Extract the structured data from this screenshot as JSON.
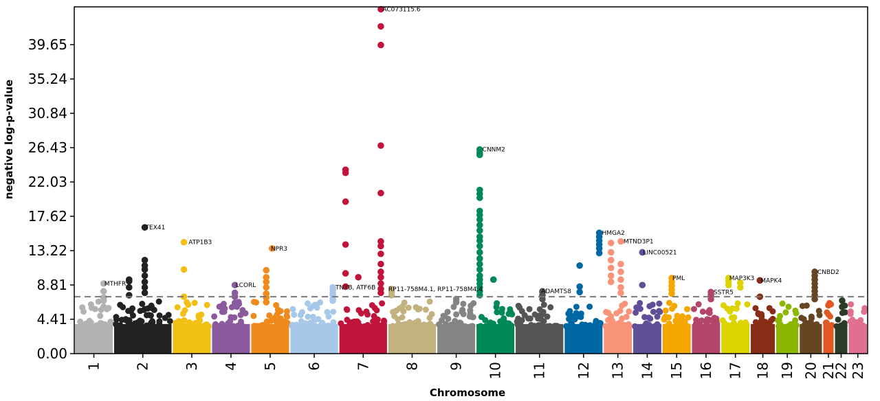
{
  "chart_data": {
    "type": "scatter",
    "subtype": "manhattan",
    "title": "",
    "xlabel": "Chromosome",
    "ylabel": "negative log-p-value",
    "ylim": [
      0,
      44.5
    ],
    "yticks": [
      "0.00",
      "4.41",
      "8.81",
      "13.22",
      "17.62",
      "22.03",
      "26.43",
      "30.84",
      "35.24",
      "39.65"
    ],
    "threshold": 7.3,
    "grid": false,
    "chromosomes": [
      {
        "label": "1",
        "color": "#b2b2b2",
        "span": [
          0.0,
          0.2
        ]
      },
      {
        "label": "2",
        "color": "#222222",
        "span": [
          0.2,
          0.5
        ]
      },
      {
        "label": "3",
        "color": "#f2c014",
        "span": [
          0.5,
          0.7
        ]
      },
      {
        "label": "4",
        "color": "#8a5a9c",
        "span": [
          0.7,
          0.9
        ]
      },
      {
        "label": "5",
        "color": "#f08a1c",
        "span": [
          0.9,
          1.1
        ]
      },
      {
        "label": "6",
        "color": "#a8c8ea",
        "span": [
          1.1,
          1.35
        ]
      },
      {
        "label": "7",
        "color": "#c0143c",
        "span": [
          1.35,
          1.6
        ]
      },
      {
        "label": "8",
        "color": "#c2b280",
        "span": [
          1.6,
          1.85
        ]
      },
      {
        "label": "9",
        "color": "#848482",
        "span": [
          1.85,
          2.05
        ]
      },
      {
        "label": "10",
        "color": "#008856",
        "span": [
          2.05,
          2.25
        ]
      },
      {
        "label": "11",
        "color": "#555555",
        "span": [
          2.25,
          2.5
        ]
      },
      {
        "label": "12",
        "color": "#0067a5",
        "span": [
          2.5,
          2.7
        ]
      },
      {
        "label": "13",
        "color": "#f99379",
        "span": [
          2.7,
          2.85
        ]
      },
      {
        "label": "14",
        "color": "#604e97",
        "span": [
          2.85,
          3.0
        ]
      },
      {
        "label": "15",
        "color": "#f6a600",
        "span": [
          3.0,
          3.15
        ]
      },
      {
        "label": "16",
        "color": "#b3446c",
        "span": [
          3.15,
          3.3
        ]
      },
      {
        "label": "17",
        "color": "#dcd300",
        "span": [
          3.3,
          3.45
        ]
      },
      {
        "label": "18",
        "color": "#882d17",
        "span": [
          3.45,
          3.58
        ]
      },
      {
        "label": "19",
        "color": "#8db600",
        "span": [
          3.58,
          3.7
        ]
      },
      {
        "label": "20",
        "color": "#654522",
        "span": [
          3.7,
          3.82
        ]
      },
      {
        "label": "21",
        "color": "#e25822",
        "span": [
          3.82,
          3.88
        ]
      },
      {
        "label": "22",
        "color": "#2b3d26",
        "span": [
          3.88,
          3.95
        ]
      },
      {
        "label": "23",
        "color": "#e07090",
        "span": [
          3.95,
          4.05
        ]
      }
    ],
    "annotations": [
      {
        "text": "MTHFR",
        "x": 0.15,
        "y": 9.0,
        "chrom": "1"
      },
      {
        "text": "TEX41",
        "x": 0.36,
        "y": 16.2,
        "chrom": "2"
      },
      {
        "text": "ATP1B3",
        "x": 0.58,
        "y": 14.3,
        "chrom": "3"
      },
      {
        "text": "LCORL",
        "x": 0.82,
        "y": 8.8,
        "chrom": "4"
      },
      {
        "text": "NPR3",
        "x": 1.0,
        "y": 13.5,
        "chrom": "5"
      },
      {
        "text": "TNXB, ATF6B",
        "x": 1.33,
        "y": 8.5,
        "chrom": "6"
      },
      {
        "text": "AC073115.6",
        "x": 1.57,
        "y": 44.2,
        "chrom": "7"
      },
      {
        "text": "RP11-758M4.1, RP11-758M4.4",
        "x": 1.6,
        "y": 8.3,
        "chrom": "8"
      },
      {
        "text": "CNNM2",
        "x": 2.08,
        "y": 26.2,
        "chrom": "10"
      },
      {
        "text": "ADAMTS8",
        "x": 2.38,
        "y": 8.0,
        "chrom": "11"
      },
      {
        "text": "HMGA2",
        "x": 2.69,
        "y": 15.5,
        "chrom": "12"
      },
      {
        "text": "MTND3P1",
        "x": 2.8,
        "y": 14.4,
        "chrom": "13"
      },
      {
        "text": "LINC00521",
        "x": 2.9,
        "y": 13.0,
        "chrom": "14"
      },
      {
        "text": "PML",
        "x": 3.05,
        "y": 9.7,
        "chrom": "15"
      },
      {
        "text": "SSTR5",
        "x": 3.26,
        "y": 7.9,
        "chrom": "16"
      },
      {
        "text": "MAP3K3",
        "x": 3.34,
        "y": 9.7,
        "chrom": "17"
      },
      {
        "text": "MAPK4",
        "x": 3.5,
        "y": 9.4,
        "chrom": "18"
      },
      {
        "text": "CNBD2",
        "x": 3.79,
        "y": 10.5,
        "chrom": "20"
      }
    ],
    "peaks": [
      {
        "chrom": "1",
        "x": 0.15,
        "values": [
          9.0,
          8.0,
          7.2,
          6.8,
          6.0
        ]
      },
      {
        "chrom": "2",
        "x": 0.36,
        "values": [
          16.2,
          12.0,
          11.3,
          10.8,
          10.0,
          9.2,
          8.5,
          7.8
        ]
      },
      {
        "chrom": "2",
        "x": 0.28,
        "values": [
          9.5,
          9.3,
          8.5,
          7.5
        ]
      },
      {
        "chrom": "3",
        "x": 0.56,
        "values": [
          14.3,
          10.8,
          7.3
        ]
      },
      {
        "chrom": "4",
        "x": 0.82,
        "values": [
          8.8,
          7.8,
          7.3,
          6.5
        ]
      },
      {
        "chrom": "5",
        "x": 1.01,
        "values": [
          13.5
        ]
      },
      {
        "chrom": "5",
        "x": 0.98,
        "values": [
          10.7,
          9.8,
          9.2,
          8.5,
          7.7,
          7.2,
          6.6
        ]
      },
      {
        "chrom": "6",
        "x": 1.32,
        "values": [
          8.5,
          8.2,
          7.8,
          7.5,
          7.0,
          6.8
        ]
      },
      {
        "chrom": "7",
        "x": 1.385,
        "values": [
          23.6,
          23.2,
          19.5,
          14.0,
          10.3,
          8.6
        ]
      },
      {
        "chrom": "7",
        "x": 1.565,
        "values": [
          44.2,
          42.0,
          39.6,
          26.7,
          20.6,
          14.4,
          13.8,
          12.8,
          11.5,
          10.5,
          9.8,
          9.0,
          8.3,
          7.8
        ]
      },
      {
        "chrom": "7",
        "x": 1.45,
        "values": [
          9.8
        ]
      },
      {
        "chrom": "8",
        "x": 1.62,
        "values": [
          8.3,
          8.1,
          7.9,
          7.5
        ]
      },
      {
        "chrom": "9",
        "x": 1.95,
        "values": [
          7.0,
          6.6
        ]
      },
      {
        "chrom": "10",
        "x": 2.07,
        "values": [
          26.2,
          25.8,
          25.5,
          21.0,
          20.5,
          20.0,
          18.3,
          17.8,
          17.2,
          16.5,
          15.8,
          15.0,
          14.5,
          13.8,
          13.0,
          12.2,
          11.5,
          10.8,
          10.0,
          9.5,
          9.0,
          8.5,
          8.0,
          7.5
        ]
      },
      {
        "chrom": "10",
        "x": 2.14,
        "values": [
          9.5
        ]
      },
      {
        "chrom": "11",
        "x": 2.39,
        "values": [
          8.0,
          7.9,
          7.5,
          7.0
        ]
      },
      {
        "chrom": "12",
        "x": 2.68,
        "values": [
          15.5,
          15.0,
          14.5,
          14.0,
          13.5,
          12.9
        ]
      },
      {
        "chrom": "12",
        "x": 2.58,
        "values": [
          11.3,
          8.6,
          7.9
        ]
      },
      {
        "chrom": "13",
        "x": 2.74,
        "values": [
          14.2,
          13.0,
          12.0,
          11.0,
          10.0,
          9.2
        ]
      },
      {
        "chrom": "13",
        "x": 2.79,
        "values": [
          14.4,
          11.5,
          10.5,
          9.5,
          8.5,
          7.8
        ]
      },
      {
        "chrom": "14",
        "x": 2.9,
        "values": [
          13.0,
          8.8
        ]
      },
      {
        "chrom": "15",
        "x": 3.05,
        "values": [
          9.7,
          9.2,
          8.7,
          8.2,
          7.7
        ]
      },
      {
        "chrom": "16",
        "x": 3.25,
        "values": [
          7.9,
          7.5,
          7.0
        ]
      },
      {
        "chrom": "17",
        "x": 3.34,
        "values": [
          9.7,
          9.3,
          8.8
        ]
      },
      {
        "chrom": "17",
        "x": 3.4,
        "values": [
          9.1,
          8.5
        ]
      },
      {
        "chrom": "18",
        "x": 3.5,
        "values": [
          9.4,
          7.3
        ]
      },
      {
        "chrom": "20",
        "x": 3.78,
        "values": [
          10.5,
          10.0,
          9.5,
          9.0,
          8.5,
          8.0,
          7.5,
          7.0
        ]
      },
      {
        "chrom": "21",
        "x": 3.85,
        "values": [
          6.2
        ]
      },
      {
        "chrom": "22",
        "x": 3.92,
        "values": [
          6.8,
          6.0
        ]
      }
    ]
  }
}
